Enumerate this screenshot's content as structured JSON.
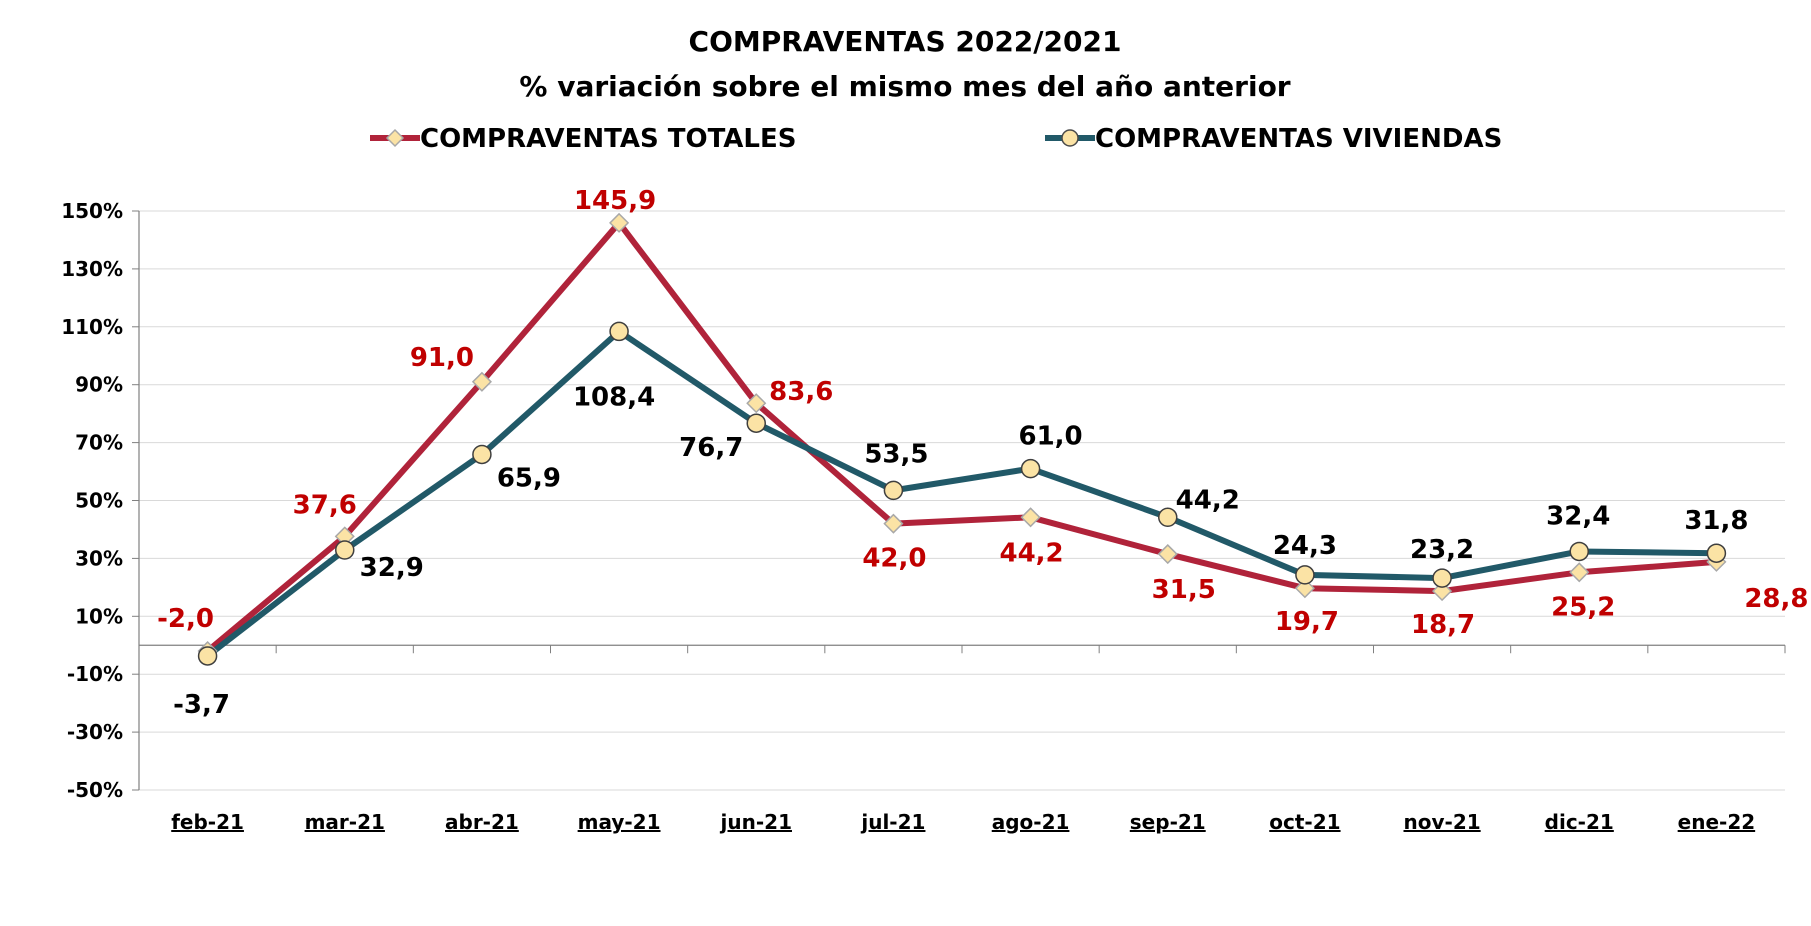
{
  "chart_data": {
    "type": "line",
    "title": "COMPRAVENTAS 2022/2021",
    "subtitle": "% variación sobre el mismo mes del año anterior",
    "categories": [
      "feb-21",
      "mar-21",
      "abr-21",
      "may-21",
      "jun-21",
      "jul-21",
      "ago-21",
      "sep-21",
      "oct-21",
      "nov-21",
      "dic-21",
      "ene-22"
    ],
    "series": [
      {
        "name": "COMPRAVENTAS TOTALES",
        "values": [
          -2.0,
          37.6,
          91.0,
          145.9,
          83.6,
          42.0,
          44.2,
          31.5,
          19.7,
          18.7,
          25.2,
          28.8
        ],
        "labels": [
          "-2,0",
          "37,6",
          "91,0",
          "145,9",
          "83,6",
          "42,0",
          "44,2",
          "31,5",
          "19,7",
          "18,7",
          "25,2",
          "28,8"
        ],
        "line_color": "#b0233a",
        "marker": "diamond",
        "marker_color": "#fbe3a5",
        "label_color": "#c00000"
      },
      {
        "name": "COMPRAVENTAS VIVIENDAS",
        "values": [
          -3.7,
          32.9,
          65.9,
          108.4,
          76.7,
          53.5,
          61.0,
          44.2,
          24.3,
          23.2,
          32.4,
          31.8
        ],
        "labels": [
          "-3,7",
          "32,9",
          "65,9",
          "108,4",
          "76,7",
          "53,5",
          "61,0",
          "44,2",
          "24,3",
          "23,2",
          "32,4",
          "31,8"
        ],
        "line_color": "#215968",
        "marker": "circle",
        "marker_color": "#fbe3a5",
        "label_color": "#000000"
      }
    ],
    "yticks": [
      "150%",
      "130%",
      "110%",
      "90%",
      "70%",
      "50%",
      "30%",
      "10%",
      "-10%",
      "-30%",
      "-50%"
    ],
    "ylim": [
      -50,
      150
    ],
    "grid": true,
    "legend_position": "top"
  }
}
